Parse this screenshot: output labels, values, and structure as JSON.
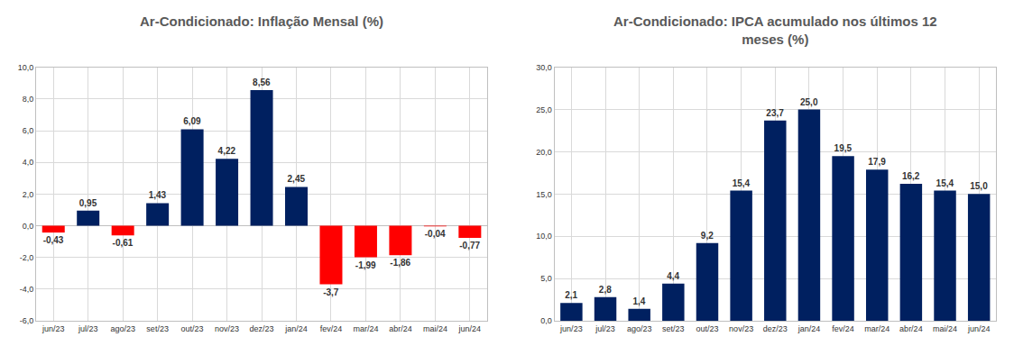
{
  "chart_data": [
    {
      "type": "bar",
      "title": "Ar-Condicionado: Inflação Mensal (%)",
      "categories": [
        "jun/23",
        "jul/23",
        "ago/23",
        "set/23",
        "out/23",
        "nov/23",
        "dez/23",
        "jan/24",
        "fev/24",
        "mar/24",
        "abr/24",
        "mai/24",
        "jun/24"
      ],
      "values": [
        -0.43,
        0.95,
        -0.61,
        1.43,
        6.09,
        4.22,
        8.56,
        2.45,
        -3.7,
        -1.99,
        -1.86,
        -0.04,
        -0.77
      ],
      "value_labels": [
        "-0,43",
        "0,95",
        "-0,61",
        "1,43",
        "6,09",
        "4,22",
        "8,56",
        "2,45",
        "-3,7",
        "-1,99",
        "-1,86",
        "-0,04",
        "-0,77"
      ],
      "colors": [
        "#ff0000",
        "#002060",
        "#ff0000",
        "#002060",
        "#002060",
        "#002060",
        "#002060",
        "#002060",
        "#ff0000",
        "#ff0000",
        "#ff0000",
        "#ff0000",
        "#ff0000"
      ],
      "ylim": [
        -6,
        10
      ],
      "yticks": [
        {
          "value": -6,
          "label": "-6,0"
        },
        {
          "value": -4,
          "label": "-4,0"
        },
        {
          "value": -2,
          "label": "-2,0"
        },
        {
          "value": 0,
          "label": "0,0"
        },
        {
          "value": 2,
          "label": "2,0"
        },
        {
          "value": 4,
          "label": "4,0"
        },
        {
          "value": 6,
          "label": "6,0"
        },
        {
          "value": 8,
          "label": "8,0"
        },
        {
          "value": 10,
          "label": "10,0"
        }
      ],
      "grid": true,
      "data_labels": true
    },
    {
      "type": "bar",
      "title": "Ar-Condicionado: IPCA acumulado nos últimos 12\nmeses (%)",
      "categories": [
        "jun/23",
        "jul/23",
        "ago/23",
        "set/23",
        "out/23",
        "nov/23",
        "dez/23",
        "jan/24",
        "fev/24",
        "mar/24",
        "abr/24",
        "mai/24",
        "jun/24"
      ],
      "values": [
        2.1,
        2.8,
        1.4,
        4.4,
        9.2,
        15.4,
        23.7,
        25.0,
        19.5,
        17.9,
        16.2,
        15.4,
        15.0
      ],
      "value_labels": [
        "2,1",
        "2,8",
        "1,4",
        "4,4",
        "9,2",
        "15,4",
        "23,7",
        "25,0",
        "19,5",
        "17,9",
        "16,2",
        "15,4",
        "15,0"
      ],
      "color": "#002060",
      "ylim": [
        0,
        30
      ],
      "yticks": [
        {
          "value": 0,
          "label": "0,0"
        },
        {
          "value": 5,
          "label": "5,0"
        },
        {
          "value": 10,
          "label": "10,0"
        },
        {
          "value": 15,
          "label": "15,0"
        },
        {
          "value": 20,
          "label": "20,0"
        },
        {
          "value": 25,
          "label": "25,0"
        },
        {
          "value": 30,
          "label": "30,0"
        }
      ],
      "grid": true,
      "data_labels": true
    }
  ]
}
